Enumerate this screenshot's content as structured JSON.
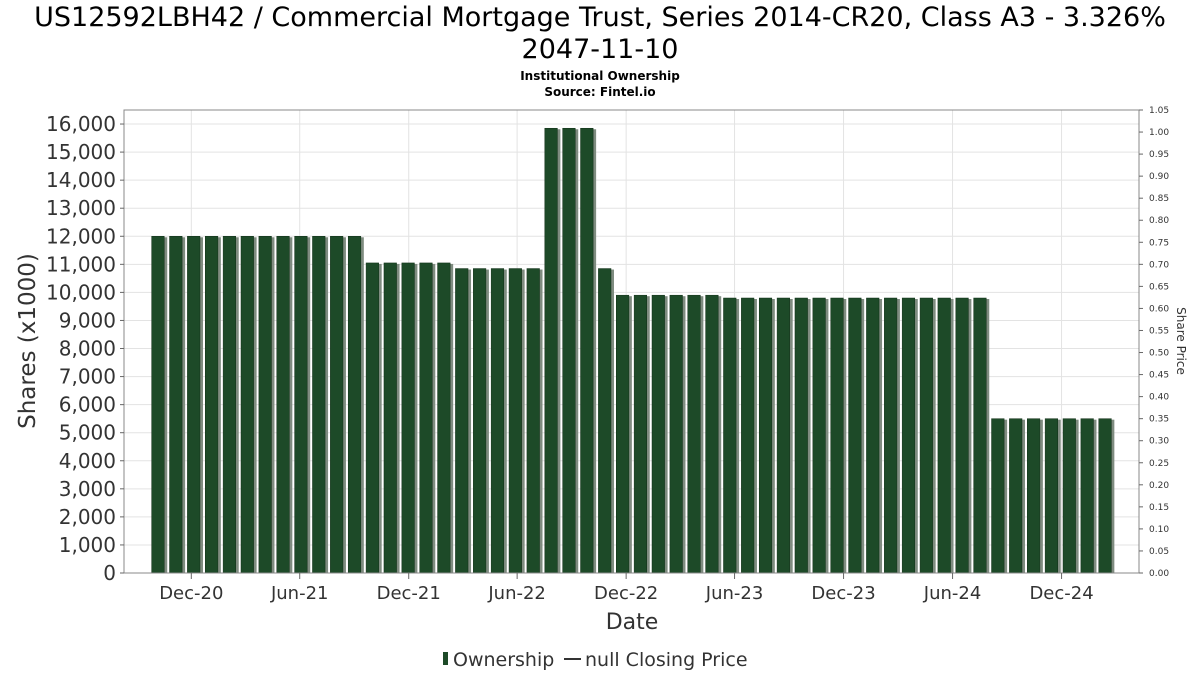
{
  "title_line1": "US12592LBH42 / Commercial Mortgage Trust, Series 2014-CR20, Class A3 - 3.326%",
  "title_line2": "2047-11-10",
  "subtitle_line1": "Institutional Ownership",
  "subtitle_line2": "Source: Fintel.io",
  "colors": {
    "bar": "#1d4a28",
    "bar_shadow": "#7f8c80",
    "grid": "#e3e3e3",
    "frame": "#888888"
  },
  "chart_data": {
    "type": "bar",
    "title": "US12592LBH42 / Commercial Mortgage Trust, Series 2014-CR20, Class A3 - 3.326% 2047-11-10",
    "xlabel": "Date",
    "ylabel": "Shares (x1000)",
    "y2label": "Share Price",
    "ylim": [
      0,
      16500
    ],
    "y2lim": [
      0,
      1.05
    ],
    "xlim": [
      "2020-08-10",
      "2025-04-10"
    ],
    "grid": true,
    "legend_position": "bottom",
    "x_ticks": [
      "Dec-20",
      "Jun-21",
      "Dec-21",
      "Jun-22",
      "Dec-22",
      "Jun-23",
      "Dec-23",
      "Jun-24",
      "Dec-24"
    ],
    "x_tick_dates": [
      "2020-12-01",
      "2021-06-01",
      "2021-12-01",
      "2022-06-01",
      "2022-12-01",
      "2023-06-01",
      "2023-12-01",
      "2024-06-01",
      "2024-12-01"
    ],
    "y_ticks": [
      "0",
      "1,000",
      "2,000",
      "3,000",
      "4,000",
      "5,000",
      "6,000",
      "7,000",
      "8,000",
      "9,000",
      "10,000",
      "11,000",
      "12,000",
      "13,000",
      "14,000",
      "15,000",
      "16,000"
    ],
    "y2_ticks": [
      "0.00",
      "0.05",
      "0.10",
      "0.15",
      "0.20",
      "0.25",
      "0.30",
      "0.35",
      "0.40",
      "0.45",
      "0.50",
      "0.55",
      "0.60",
      "0.65",
      "0.70",
      "0.75",
      "0.80",
      "0.85",
      "0.90",
      "0.95",
      "1.00",
      "1.05"
    ],
    "series": [
      {
        "name": "Ownership",
        "dates": [
          "2020-10-06",
          "2020-11-05",
          "2020-12-05",
          "2021-01-04",
          "2021-02-03",
          "2021-03-05",
          "2021-04-04",
          "2021-05-04",
          "2021-06-03",
          "2021-07-03",
          "2021-08-02",
          "2021-09-01",
          "2021-10-01",
          "2021-10-31",
          "2021-11-30",
          "2021-12-30",
          "2022-01-29",
          "2022-02-28",
          "2022-03-30",
          "2022-04-29",
          "2022-05-29",
          "2022-06-28",
          "2022-07-28",
          "2022-08-27",
          "2022-09-26",
          "2022-10-26",
          "2022-11-25",
          "2022-12-25",
          "2023-01-24",
          "2023-02-23",
          "2023-03-25",
          "2023-04-24",
          "2023-05-24",
          "2023-06-23",
          "2023-07-23",
          "2023-08-22",
          "2023-09-21",
          "2023-10-21",
          "2023-11-20",
          "2023-12-20",
          "2024-01-19",
          "2024-02-18",
          "2024-03-19",
          "2024-04-18",
          "2024-05-18",
          "2024-06-17",
          "2024-07-17",
          "2024-08-16",
          "2024-09-15",
          "2024-10-15",
          "2024-11-14",
          "2024-12-14",
          "2025-01-13",
          "2025-02-12"
        ],
        "values": [
          12000,
          12000,
          12000,
          12000,
          12000,
          12000,
          12000,
          12000,
          12000,
          12000,
          12000,
          12000,
          11050,
          11050,
          11050,
          11050,
          11050,
          10850,
          10850,
          10850,
          10850,
          10850,
          15850,
          15850,
          15850,
          10850,
          9900,
          9900,
          9900,
          9900,
          9900,
          9900,
          9800,
          9800,
          9800,
          9800,
          9800,
          9800,
          9800,
          9800,
          9800,
          9800,
          9800,
          9800,
          9800,
          9800,
          9800,
          5500,
          5500,
          5500,
          5500,
          5500,
          5500,
          5500
        ]
      },
      {
        "name": "null Closing Price",
        "values": []
      }
    ]
  },
  "legend": {
    "ownership_label": "Ownership",
    "price_label": "null Closing Price"
  }
}
